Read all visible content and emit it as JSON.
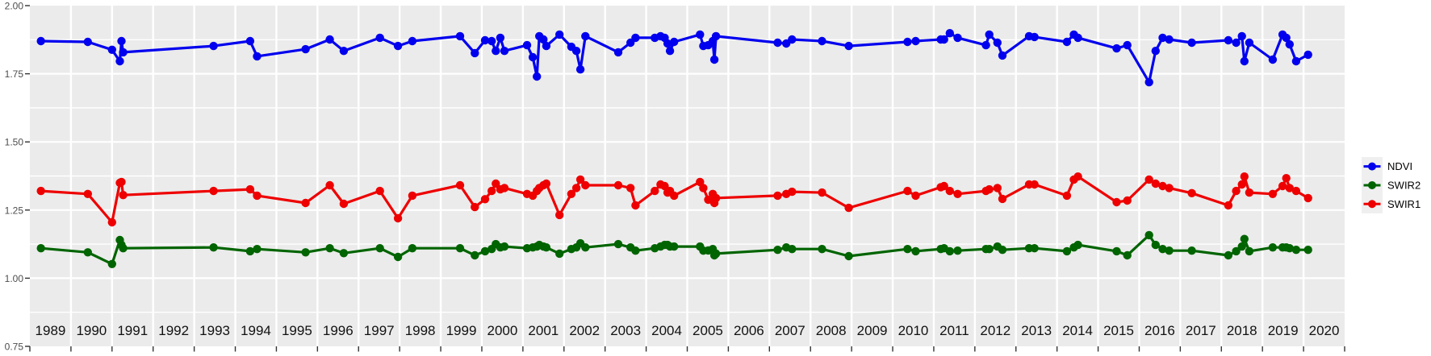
{
  "figure": {
    "kind": "ggplot-style time series scatter/line plot",
    "background": "#ffffff",
    "panel_fill": "#ebebeb",
    "grid_color": "#ffffff",
    "tick_color": "#333333",
    "axis_text_color": "#4d4d4d"
  },
  "legend": {
    "key_fill": "#efefef",
    "entries": [
      {
        "label": "NDVI",
        "color": "#0000ee"
      },
      {
        "label": "SWIR2",
        "color": "#006400"
      },
      {
        "label": "SWIR1",
        "color": "#ee0000"
      }
    ]
  },
  "chart_data": {
    "type": "line",
    "title": "",
    "xlabel": "",
    "ylabel": "",
    "x_range": [
      1989,
      2021
    ],
    "y_range": [
      0.75,
      2.0
    ],
    "y_tick_labels": [
      "2.00",
      "1.75",
      "1.50",
      "1.25",
      "1.00",
      "0.75"
    ],
    "y_tick_values": [
      2.0,
      1.75,
      1.5,
      1.25,
      1.0,
      0.75
    ],
    "y_minor_step": 0.125,
    "grid": true,
    "legend_position": "right",
    "x_tick_labels": [
      "1989",
      "1990",
      "1991",
      "1992",
      "1993",
      "1994",
      "1995",
      "1996",
      "1997",
      "1998",
      "1999",
      "2000",
      "2001",
      "2002",
      "2003",
      "2004",
      "2005",
      "2006",
      "2007",
      "2008",
      "2009",
      "2010",
      "2011",
      "2012",
      "2013",
      "2014",
      "2015",
      "2016",
      "2017",
      "2018",
      "2019",
      "2020"
    ],
    "x": [
      1989.27,
      1990.41,
      1991.0,
      1991.19,
      1991.23,
      1991.27,
      1993.47,
      1994.36,
      1994.53,
      1995.71,
      1996.3,
      1996.64,
      1997.52,
      1997.96,
      1998.31,
      1999.47,
      1999.83,
      2000.08,
      2000.24,
      2000.34,
      2000.45,
      2000.55,
      2001.1,
      2001.24,
      2001.34,
      2001.4,
      2001.5,
      2001.57,
      2001.89,
      2002.18,
      2002.3,
      2002.4,
      2002.52,
      2003.32,
      2003.62,
      2003.74,
      2004.21,
      2004.35,
      2004.45,
      2004.52,
      2004.58,
      2004.68,
      2005.31,
      2005.39,
      2005.51,
      2005.62,
      2005.66,
      2005.7,
      2007.2,
      2007.41,
      2007.55,
      2008.28,
      2008.93,
      2010.36,
      2010.56,
      2011.17,
      2011.25,
      2011.39,
      2011.58,
      2012.27,
      2012.35,
      2012.55,
      2012.67,
      2013.32,
      2013.45,
      2014.24,
      2014.41,
      2014.51,
      2015.45,
      2015.71,
      2016.24,
      2016.4,
      2016.57,
      2016.73,
      2017.28,
      2018.17,
      2018.36,
      2018.5,
      2018.56,
      2018.68,
      2019.25,
      2019.49,
      2019.58,
      2019.66,
      2019.82,
      2020.11
    ],
    "series": [
      {
        "name": "NDVI",
        "color": "#0000ee",
        "values": [
          1.87,
          1.867,
          1.838,
          1.796,
          1.87,
          1.829,
          1.852,
          1.87,
          1.814,
          1.84,
          1.876,
          1.834,
          1.882,
          1.852,
          1.87,
          1.888,
          1.826,
          1.873,
          1.87,
          1.834,
          1.882,
          1.834,
          1.855,
          1.811,
          1.74,
          1.888,
          1.876,
          1.852,
          1.894,
          1.849,
          1.834,
          1.766,
          1.888,
          1.829,
          1.864,
          1.882,
          1.882,
          1.888,
          1.882,
          1.861,
          1.834,
          1.867,
          1.894,
          1.852,
          1.855,
          1.87,
          1.802,
          1.888,
          1.864,
          1.861,
          1.876,
          1.87,
          1.852,
          1.867,
          1.87,
          1.876,
          1.876,
          1.899,
          1.882,
          1.855,
          1.894,
          1.864,
          1.817,
          1.888,
          1.885,
          1.867,
          1.894,
          1.882,
          1.843,
          1.855,
          1.719,
          1.834,
          1.882,
          1.876,
          1.864,
          1.873,
          1.864,
          1.888,
          1.796,
          1.864,
          1.802,
          1.894,
          1.882,
          1.858,
          1.796,
          1.82
        ]
      },
      {
        "name": "SWIR2",
        "color": "#006400",
        "values": [
          1.11,
          1.095,
          1.052,
          1.14,
          1.122,
          1.11,
          1.113,
          1.099,
          1.107,
          1.095,
          1.11,
          1.092,
          1.11,
          1.078,
          1.11,
          1.11,
          1.084,
          1.099,
          1.107,
          1.125,
          1.113,
          1.116,
          1.11,
          1.113,
          1.116,
          1.122,
          1.116,
          1.113,
          1.09,
          1.107,
          1.113,
          1.128,
          1.113,
          1.125,
          1.113,
          1.101,
          1.11,
          1.116,
          1.122,
          1.122,
          1.116,
          1.116,
          1.116,
          1.101,
          1.102,
          1.107,
          1.084,
          1.09,
          1.104,
          1.113,
          1.107,
          1.107,
          1.081,
          1.107,
          1.099,
          1.107,
          1.11,
          1.099,
          1.101,
          1.107,
          1.107,
          1.116,
          1.104,
          1.11,
          1.11,
          1.099,
          1.113,
          1.122,
          1.099,
          1.084,
          1.158,
          1.122,
          1.107,
          1.101,
          1.101,
          1.084,
          1.099,
          1.116,
          1.144,
          1.099,
          1.113,
          1.113,
          1.113,
          1.11,
          1.104,
          1.104
        ]
      },
      {
        "name": "SWIR1",
        "color": "#ee0000",
        "values": [
          1.32,
          1.309,
          1.205,
          1.35,
          1.353,
          1.305,
          1.32,
          1.326,
          1.303,
          1.276,
          1.341,
          1.273,
          1.32,
          1.22,
          1.303,
          1.341,
          1.261,
          1.29,
          1.32,
          1.347,
          1.326,
          1.331,
          1.309,
          1.303,
          1.32,
          1.331,
          1.341,
          1.347,
          1.232,
          1.309,
          1.331,
          1.362,
          1.341,
          1.341,
          1.331,
          1.267,
          1.32,
          1.344,
          1.338,
          1.314,
          1.32,
          1.303,
          1.353,
          1.331,
          1.288,
          1.309,
          1.276,
          1.294,
          1.303,
          1.309,
          1.317,
          1.314,
          1.258,
          1.32,
          1.303,
          1.334,
          1.338,
          1.32,
          1.309,
          1.32,
          1.326,
          1.331,
          1.291,
          1.344,
          1.344,
          1.303,
          1.362,
          1.373,
          1.279,
          1.285,
          1.362,
          1.347,
          1.338,
          1.331,
          1.312,
          1.267,
          1.32,
          1.344,
          1.373,
          1.314,
          1.309,
          1.338,
          1.367,
          1.331,
          1.32,
          1.294
        ]
      }
    ]
  }
}
